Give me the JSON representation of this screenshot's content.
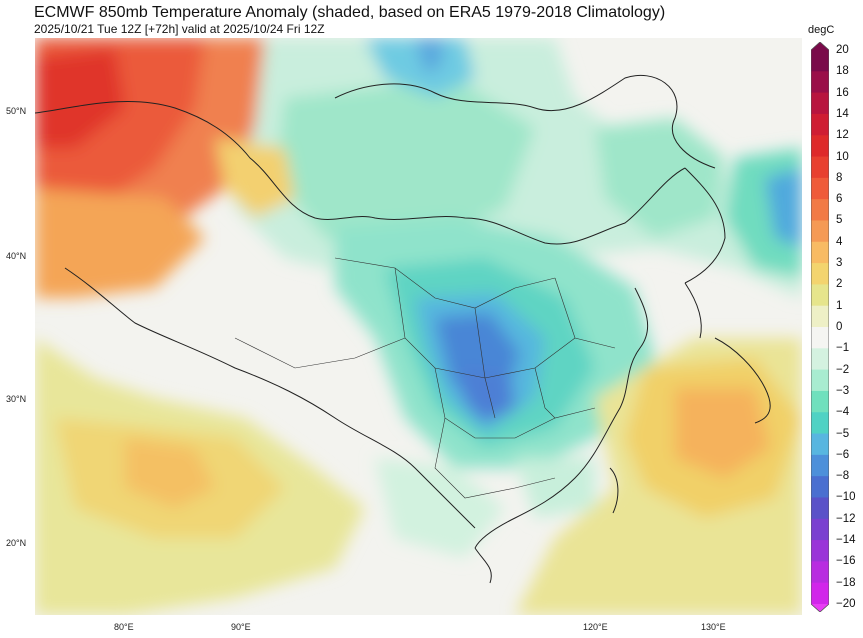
{
  "title": "ECMWF 850mb Temperature Anomaly (shaded, based on ERA5 1979-2018 Climatology)",
  "subtitle": "2025/10/21 Tue 12Z [+72h] valid at 2025/10/24 Fri 12Z",
  "colorbar": {
    "unit": "degC",
    "levels": [
      "20",
      "18",
      "16",
      "14",
      "12",
      "10",
      "8",
      "6",
      "5",
      "4",
      "3",
      "2",
      "1",
      "0",
      "−1",
      "−2",
      "−3",
      "−4",
      "−5",
      "−6",
      "−8",
      "−10",
      "−12",
      "−14",
      "−16",
      "−18",
      "−20"
    ],
    "colors": [
      "#7a0a4a",
      "#9a0f49",
      "#b8153f",
      "#cf1d33",
      "#de2a2a",
      "#e8402f",
      "#ef5b39",
      "#f27a45",
      "#f59a54",
      "#f8bb63",
      "#f3d46e",
      "#e6e58c",
      "#eef0c6",
      "#f5f5f2",
      "#d4f2e0",
      "#a8ecd0",
      "#70e0bd",
      "#4fd2c4",
      "#58b6e0",
      "#4d90da",
      "#4a6fd0",
      "#5a52c8",
      "#7a40d0",
      "#9a34d8",
      "#b82ce0",
      "#d126ea",
      "#e83cf5"
    ]
  },
  "lat_labels": [
    "50°N",
    "40°N",
    "30°N",
    "20°N"
  ],
  "lon_labels": [
    "80°E",
    "90°E",
    "120°E",
    "130°E"
  ],
  "map": {
    "region": "East Asia / China",
    "variable": "850mb temperature anomaly",
    "anomaly_areas": [
      {
        "area": "far northwest (Kazakhstan / N Xinjiang)",
        "anomaly": "+8 to +12"
      },
      {
        "area": "western Xinjiang / Tarim",
        "anomaly": "+3 to +6"
      },
      {
        "area": "central Sichuan–Chongqing–Hubei",
        "anomaly": "-4 to -6"
      },
      {
        "area": "northern China / Mongolia",
        "anomaly": "-1 to -3"
      },
      {
        "area": "Sea of Japan / NE",
        "anomaly": "-3 to -5"
      },
      {
        "area": "East China Sea / Ryukyu",
        "anomaly": "+3 to +5"
      },
      {
        "area": "southern Tibet / Myanmar / India",
        "anomaly": "+2 to +3"
      }
    ]
  }
}
